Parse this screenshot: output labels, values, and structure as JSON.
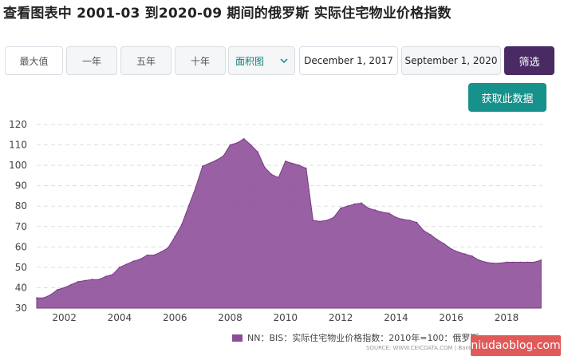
{
  "title": "查看图表中 2001-03 到2020-09 期间的俄罗斯 实际住宅物业价格指数",
  "toolbar": {
    "max_label": "最大值",
    "one_year_label": "一年",
    "five_year_label": "五年",
    "ten_year_label": "十年",
    "chart_type_value": "面积图",
    "start_date": "December 1, 2017",
    "end_date": "September 1, 2020",
    "filter_label": "筛选"
  },
  "fetch_label": "获取此数据",
  "legend_label": "NN：BIS：实际住宅物业价格指数：2010年=100：俄罗斯",
  "source_text": "SOURCE: WWW.CEICDATA.COM | Bank",
  "watermark_text": "niudaoblog.com",
  "colors": {
    "area": "#8c4a97",
    "filter_button": "#4a2a63",
    "fetch_button": "#17918b",
    "dropdown_text": "#16807b"
  },
  "chart_data": {
    "type": "area",
    "title": "",
    "xlabel": "",
    "ylabel": "",
    "ylim": [
      30,
      120
    ],
    "y_ticks": [
      30,
      40,
      50,
      60,
      70,
      80,
      90,
      100,
      110,
      120
    ],
    "x_ticks": [
      2002,
      2004,
      2006,
      2008,
      2010,
      2012,
      2014,
      2016,
      2018
    ],
    "xlim": [
      2001.0,
      2019.3
    ],
    "grid": true,
    "legend_position": "bottom",
    "series": [
      {
        "name": "NN：BIS：实际住宅物业价格指数：2010年=100：俄罗斯",
        "x": [
          2001.0,
          2001.25,
          2001.5,
          2001.75,
          2002.0,
          2002.25,
          2002.5,
          2002.75,
          2003.0,
          2003.25,
          2003.5,
          2003.75,
          2004.0,
          2004.25,
          2004.5,
          2004.75,
          2005.0,
          2005.25,
          2005.5,
          2005.75,
          2006.0,
          2006.25,
          2006.5,
          2006.75,
          2007.0,
          2007.25,
          2007.5,
          2007.75,
          2008.0,
          2008.25,
          2008.5,
          2008.75,
          2009.0,
          2009.25,
          2009.5,
          2009.75,
          2010.0,
          2010.25,
          2010.5,
          2010.75,
          2011.0,
          2011.25,
          2011.5,
          2011.75,
          2012.0,
          2012.25,
          2012.5,
          2012.75,
          2013.0,
          2013.25,
          2013.5,
          2013.75,
          2014.0,
          2014.25,
          2014.5,
          2014.75,
          2015.0,
          2015.25,
          2015.5,
          2015.75,
          2016.0,
          2016.25,
          2016.5,
          2016.75,
          2017.0,
          2017.25,
          2017.5,
          2017.75,
          2018.0,
          2018.25,
          2018.5,
          2018.75,
          2019.0,
          2019.25
        ],
        "values": [
          35.0,
          35.0,
          36.5,
          39.0,
          40.0,
          41.5,
          43.0,
          43.5,
          44.0,
          44.0,
          45.5,
          46.5,
          50.0,
          51.5,
          53.0,
          54.0,
          56.0,
          56.0,
          57.5,
          59.5,
          65.0,
          71.0,
          80.0,
          89.0,
          99.5,
          101.0,
          102.5,
          104.5,
          110.0,
          111.0,
          113.0,
          110.0,
          106.5,
          99.0,
          95.5,
          94.0,
          102.0,
          101.0,
          100.0,
          98.5,
          73.0,
          72.5,
          73.0,
          74.5,
          79.0,
          80.0,
          81.0,
          81.5,
          79.0,
          78.0,
          77.0,
          76.5,
          74.5,
          73.5,
          73.0,
          72.0,
          68.0,
          66.0,
          63.5,
          61.5,
          59.0,
          57.5,
          56.5,
          55.5,
          53.5,
          52.5,
          52.0,
          52.0,
          52.5,
          52.5,
          52.5,
          52.5,
          52.5,
          53.5
        ]
      }
    ]
  }
}
